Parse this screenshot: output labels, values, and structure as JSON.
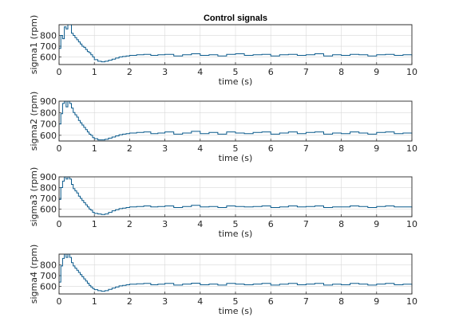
{
  "figure_title": "Control signals",
  "colors": {
    "line": "#0a5a8c",
    "axes": "#262626",
    "grid": "#d9d9d9",
    "background": "#ffffff"
  },
  "chart_data": [
    {
      "type": "line",
      "title": "Control signals",
      "xlabel": "time (s)",
      "ylabel": "sigma1 (rpm)",
      "xlim": [
        0,
        10
      ],
      "ylim": [
        530,
        900
      ],
      "xticks": [
        0,
        1,
        2,
        3,
        4,
        5,
        6,
        7,
        8,
        9,
        10
      ],
      "yticks": [
        600,
        700,
        800
      ],
      "grid": true,
      "series": [
        {
          "x": [
            0,
            0.05,
            0.1,
            0.15,
            0.2,
            0.25,
            0.3,
            0.35,
            0.4,
            0.45,
            0.5,
            0.55,
            0.6,
            0.65,
            0.7,
            0.75,
            0.8,
            0.85,
            0.9,
            0.95,
            1,
            1.1,
            1.2,
            1.3,
            1.4,
            1.5,
            1.6,
            1.7,
            1.8,
            1.9,
            2,
            2.2,
            2.4,
            2.6,
            2.8,
            3,
            3.25,
            3.5,
            3.75,
            4,
            4.25,
            4.5,
            4.75,
            5,
            5.25,
            5.5,
            5.75,
            6,
            6.25,
            6.5,
            6.75,
            7,
            7.25,
            7.5,
            7.75,
            8,
            8.25,
            8.5,
            8.75,
            9,
            9.25,
            9.5,
            9.75,
            10
          ],
          "y": [
            680,
            800,
            770,
            880,
            860,
            900,
            900,
            820,
            800,
            780,
            760,
            740,
            720,
            700,
            690,
            670,
            650,
            640,
            620,
            600,
            575,
            560,
            555,
            560,
            570,
            580,
            590,
            600,
            605,
            610,
            615,
            620,
            625,
            615,
            620,
            625,
            610,
            620,
            630,
            615,
            620,
            610,
            625,
            630,
            615,
            620,
            625,
            610,
            620,
            625,
            615,
            620,
            630,
            610,
            620,
            615,
            625,
            620,
            610,
            620,
            625,
            615,
            620,
            605
          ]
        }
      ]
    },
    {
      "type": "line",
      "xlabel": "time (s)",
      "ylabel": "sigma2 (rpm)",
      "xlim": [
        0,
        10
      ],
      "ylim": [
        550,
        900
      ],
      "xticks": [
        0,
        1,
        2,
        3,
        4,
        5,
        6,
        7,
        8,
        9,
        10
      ],
      "yticks": [
        600,
        700,
        800,
        900
      ],
      "grid": true,
      "series": [
        {
          "x": [
            0,
            0.05,
            0.1,
            0.15,
            0.2,
            0.25,
            0.3,
            0.35,
            0.4,
            0.45,
            0.5,
            0.55,
            0.6,
            0.65,
            0.7,
            0.75,
            0.8,
            0.85,
            0.9,
            0.95,
            1,
            1.1,
            1.2,
            1.3,
            1.4,
            1.5,
            1.6,
            1.7,
            1.8,
            1.9,
            2,
            2.2,
            2.4,
            2.6,
            2.8,
            3,
            3.25,
            3.5,
            3.75,
            4,
            4.25,
            4.5,
            4.75,
            5,
            5.25,
            5.5,
            5.75,
            6,
            6.25,
            6.5,
            6.75,
            7,
            7.25,
            7.5,
            7.75,
            8,
            8.25,
            8.5,
            8.75,
            9,
            9.25,
            9.5,
            9.75,
            10
          ],
          "y": [
            700,
            790,
            880,
            900,
            850,
            900,
            880,
            840,
            800,
            780,
            760,
            730,
            710,
            690,
            670,
            650,
            630,
            610,
            600,
            580,
            570,
            560,
            560,
            565,
            575,
            585,
            595,
            605,
            610,
            615,
            620,
            625,
            630,
            615,
            620,
            630,
            610,
            620,
            635,
            615,
            625,
            610,
            630,
            620,
            615,
            625,
            630,
            610,
            620,
            630,
            615,
            625,
            630,
            610,
            620,
            615,
            630,
            620,
            610,
            625,
            630,
            615,
            620,
            610
          ]
        }
      ]
    },
    {
      "type": "line",
      "xlabel": "time (s)",
      "ylabel": "sigma3 (rpm)",
      "xlim": [
        0,
        10
      ],
      "ylim": [
        530,
        900
      ],
      "xticks": [
        0,
        1,
        2,
        3,
        4,
        5,
        6,
        7,
        8,
        9,
        10
      ],
      "yticks": [
        600,
        700,
        800,
        900
      ],
      "grid": true,
      "series": [
        {
          "x": [
            0,
            0.05,
            0.1,
            0.15,
            0.2,
            0.25,
            0.3,
            0.35,
            0.4,
            0.45,
            0.5,
            0.55,
            0.6,
            0.65,
            0.7,
            0.75,
            0.8,
            0.85,
            0.9,
            0.95,
            1,
            1.1,
            1.2,
            1.3,
            1.4,
            1.5,
            1.6,
            1.7,
            1.8,
            1.9,
            2,
            2.2,
            2.4,
            2.6,
            2.8,
            3,
            3.25,
            3.5,
            3.75,
            4,
            4.25,
            4.5,
            4.75,
            5,
            5.25,
            5.5,
            5.75,
            6,
            6.25,
            6.5,
            6.75,
            7,
            7.25,
            7.5,
            7.75,
            8,
            8.25,
            8.5,
            8.75,
            9,
            9.25,
            9.5,
            9.75,
            10
          ],
          "y": [
            690,
            800,
            860,
            900,
            880,
            900,
            880,
            830,
            790,
            770,
            750,
            720,
            700,
            680,
            660,
            640,
            620,
            600,
            590,
            570,
            560,
            555,
            550,
            555,
            570,
            585,
            595,
            605,
            610,
            615,
            620,
            625,
            630,
            620,
            625,
            630,
            615,
            625,
            635,
            620,
            625,
            615,
            630,
            625,
            620,
            625,
            630,
            615,
            620,
            630,
            620,
            625,
            630,
            615,
            620,
            620,
            630,
            625,
            615,
            625,
            630,
            620,
            620,
            610
          ]
        }
      ]
    },
    {
      "type": "line",
      "xlabel": "time (s)",
      "ylabel": "sigma4 (rpm)",
      "xlim": [
        0,
        10
      ],
      "ylim": [
        530,
        900
      ],
      "xticks": [
        0,
        1,
        2,
        3,
        4,
        5,
        6,
        7,
        8,
        9,
        10
      ],
      "yticks": [
        600,
        700,
        800
      ],
      "grid": true,
      "series": [
        {
          "x": [
            0,
            0.05,
            0.1,
            0.15,
            0.2,
            0.25,
            0.3,
            0.35,
            0.4,
            0.45,
            0.5,
            0.55,
            0.6,
            0.65,
            0.7,
            0.75,
            0.8,
            0.85,
            0.9,
            0.95,
            1,
            1.1,
            1.2,
            1.3,
            1.4,
            1.5,
            1.6,
            1.7,
            1.8,
            1.9,
            2,
            2.2,
            2.4,
            2.6,
            2.8,
            3,
            3.25,
            3.5,
            3.75,
            4,
            4.25,
            4.5,
            4.75,
            5,
            5.25,
            5.5,
            5.75,
            6,
            6.25,
            6.5,
            6.75,
            7,
            7.25,
            7.5,
            7.75,
            8,
            8.25,
            8.5,
            8.75,
            9,
            9.25,
            9.5,
            9.75,
            10
          ],
          "y": [
            640,
            790,
            860,
            900,
            870,
            900,
            870,
            820,
            790,
            770,
            750,
            730,
            710,
            690,
            670,
            650,
            630,
            610,
            595,
            580,
            570,
            560,
            555,
            560,
            572,
            585,
            595,
            605,
            610,
            615,
            620,
            625,
            628,
            615,
            620,
            628,
            612,
            622,
            630,
            615,
            622,
            612,
            628,
            622,
            615,
            622,
            628,
            612,
            620,
            628,
            615,
            622,
            628,
            612,
            620,
            615,
            628,
            622,
            612,
            622,
            628,
            615,
            620,
            608
          ]
        }
      ]
    }
  ]
}
